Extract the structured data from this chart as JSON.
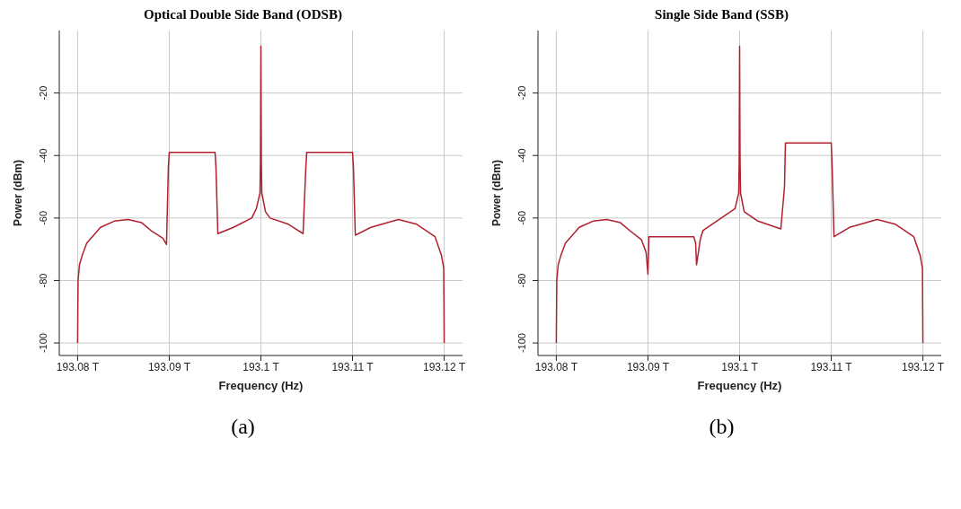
{
  "chart_data": [
    {
      "type": "line",
      "title": "Optical Double Side Band (ODSB)",
      "xlabel": "Frequency (Hz)",
      "ylabel": "Power (dBm)",
      "annotations": [
        "(a)"
      ],
      "xlim": [
        193.078,
        193.122
      ],
      "xticks": [
        {
          "value": 193.08,
          "label": "193.08 T"
        },
        {
          "value": 193.09,
          "label": "193.09 T"
        },
        {
          "value": 193.1,
          "label": "193.1 T"
        },
        {
          "value": 193.11,
          "label": "193.11 T"
        },
        {
          "value": 193.12,
          "label": "193.12 T"
        }
      ],
      "ylim": [
        -104,
        0
      ],
      "yticks": [
        -100,
        -80,
        -60,
        -40,
        -20
      ],
      "grid": true,
      "line_style": "solid",
      "x": [
        193.08,
        193.08005,
        193.0802,
        193.0805,
        193.081,
        193.0825,
        193.084,
        193.0855,
        193.087,
        193.088,
        193.0893,
        193.0897,
        193.0899,
        193.09,
        193.095,
        193.0951,
        193.0953,
        193.097,
        193.099,
        193.0995,
        193.0999,
        193.09995,
        193.1,
        193.10005,
        193.1001,
        193.1005,
        193.101,
        193.103,
        193.1046,
        193.1049,
        193.105,
        193.11,
        193.1101,
        193.1103,
        193.112,
        193.115,
        193.117,
        193.119,
        193.1197,
        193.11995,
        193.12
      ],
      "series": [
        {
          "color": "#b0202e",
          "values": [
            -100,
            -80,
            -75,
            -72,
            -68,
            -63,
            -61,
            -60.5,
            -61.5,
            -64,
            -66.5,
            -68.5,
            -44,
            -39,
            -39,
            -44,
            -65,
            -63,
            -60,
            -57,
            -52,
            -42,
            -5,
            -42,
            -52,
            -58,
            -60,
            -62,
            -65,
            -44,
            -39,
            -39,
            -44,
            -65.5,
            -63,
            -60.5,
            -62,
            -66,
            -72,
            -76,
            -100
          ]
        }
      ]
    },
    {
      "type": "line",
      "title": "Single Side Band (SSB)",
      "xlabel": "Frequency (Hz)",
      "ylabel": "Power (dBm)",
      "annotations": [
        "(b)"
      ],
      "xlim": [
        193.078,
        193.122
      ],
      "xticks": [
        {
          "value": 193.08,
          "label": "193.08 T"
        },
        {
          "value": 193.09,
          "label": "193.09 T"
        },
        {
          "value": 193.1,
          "label": "193.1 T"
        },
        {
          "value": 193.11,
          "label": "193.11 T"
        },
        {
          "value": 193.12,
          "label": "193.12 T"
        }
      ],
      "ylim": [
        -104,
        0
      ],
      "yticks": [
        -100,
        -80,
        -60,
        -40,
        -20
      ],
      "grid": true,
      "line_style": "solid",
      "x": [
        193.08,
        193.08005,
        193.0802,
        193.0805,
        193.081,
        193.0825,
        193.084,
        193.0855,
        193.087,
        193.088,
        193.0893,
        193.0898,
        193.09,
        193.0901,
        193.095,
        193.0952,
        193.0953,
        193.0957,
        193.096,
        193.098,
        193.0995,
        193.0999,
        193.09995,
        193.1,
        193.10005,
        193.1001,
        193.1005,
        193.102,
        193.1045,
        193.1049,
        193.105,
        193.11,
        193.1101,
        193.1103,
        193.112,
        193.115,
        193.117,
        193.119,
        193.1197,
        193.11995,
        193.12
      ],
      "series": [
        {
          "color": "#b0202e",
          "values": [
            -100,
            -80,
            -75,
            -72,
            -68,
            -63,
            -61,
            -60.5,
            -61.5,
            -64,
            -67,
            -71,
            -78,
            -66,
            -66,
            -68,
            -75,
            -67,
            -64,
            -60,
            -57,
            -52,
            -42,
            -5,
            -42,
            -52,
            -58,
            -61,
            -63.5,
            -50,
            -36,
            -36,
            -44,
            -66,
            -63,
            -60.5,
            -62,
            -66,
            -72,
            -76,
            -100
          ]
        }
      ]
    }
  ]
}
